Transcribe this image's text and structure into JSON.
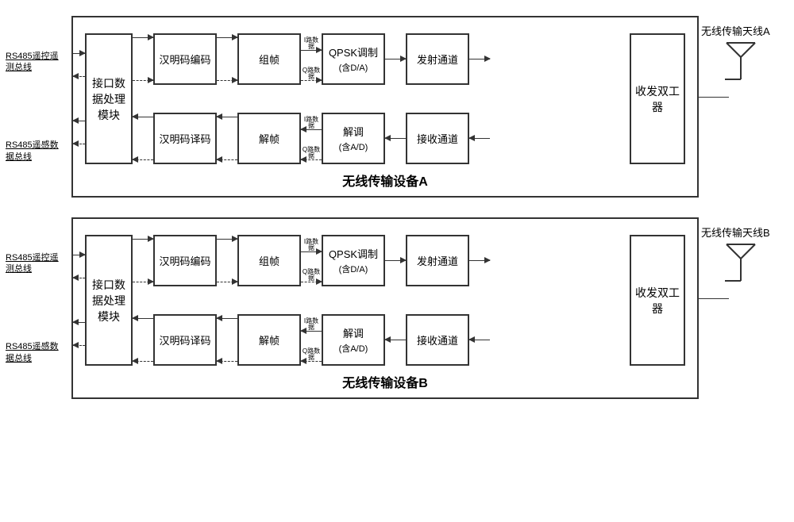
{
  "devices": [
    {
      "id": "A",
      "title": "无线传输设备A",
      "bus_top": "RS485遥控遥测总线",
      "bus_bottom": "RS485遥感数据总线",
      "interface": "接口数据处理模块",
      "enc": "汉明码编码",
      "frame": "组帧",
      "i_label": "I路数据",
      "q_label": "Q路数据",
      "mod": "QPSK调制",
      "mod_sub": "(含D/A)",
      "tx": "发射通道",
      "dec": "汉明码译码",
      "deframe": "解帧",
      "demod": "解调",
      "demod_sub": "(含A/D)",
      "rx": "接收通道",
      "duplexer": "收发双工器",
      "antenna": "无线传输天线A"
    },
    {
      "id": "B",
      "title": "无线传输设备B",
      "bus_top": "RS485遥控遥测总线",
      "bus_bottom": "RS485遥感数据总线",
      "interface": "接口数据处理模块",
      "enc": "汉明码编码",
      "frame": "组帧",
      "i_label": "I路数据",
      "q_label": "Q路数据",
      "mod": "QPSK调制",
      "mod_sub": "(含D/A)",
      "tx": "发射通道",
      "dec": "汉明码译码",
      "deframe": "解帧",
      "demod": "解调",
      "demod_sub": "(含A/D)",
      "rx": "接收通道",
      "duplexer": "收发双工器",
      "antenna": "无线传输天线B"
    }
  ],
  "colors": {
    "border": "#333333",
    "background": "#ffffff",
    "text": "#000000"
  },
  "layout": {
    "block_width": 80,
    "block_height": 65,
    "tall_block_height": 165,
    "arrow_gap": 26
  }
}
